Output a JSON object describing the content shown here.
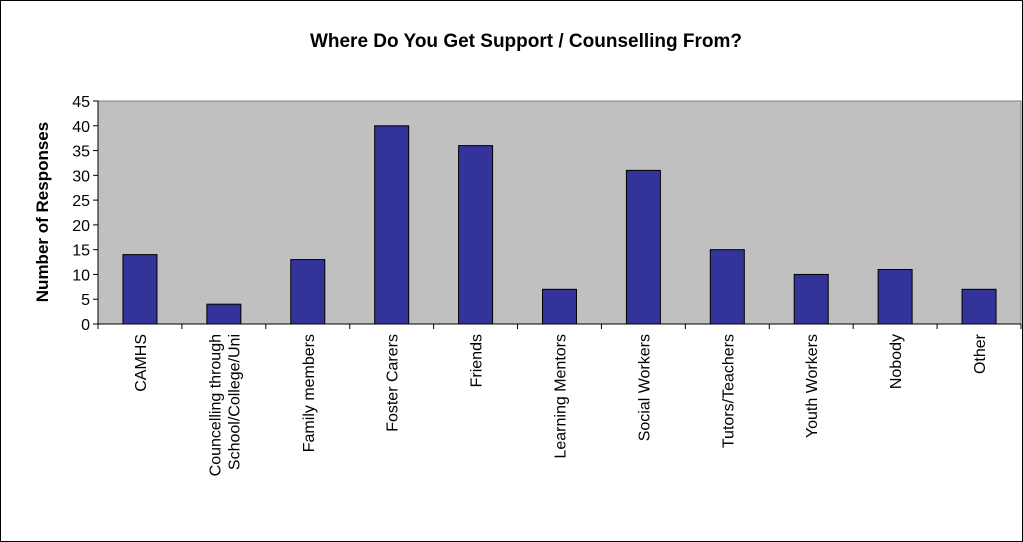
{
  "chart_data": {
    "type": "bar",
    "title": "Where Do You Get Support / Counselling From?",
    "ylabel": "Number of Responses",
    "xlabel": "",
    "ylim": [
      0,
      45
    ],
    "yticks": [
      0,
      5,
      10,
      15,
      20,
      25,
      30,
      35,
      40,
      45
    ],
    "grid": false,
    "legend": "none",
    "categories": [
      [
        "CAMHS"
      ],
      [
        "Councelling through",
        "School/College/Uni"
      ],
      [
        "Family members"
      ],
      [
        "Foster Carers"
      ],
      [
        "Friends"
      ],
      [
        "Learning Mentors"
      ],
      [
        "Social Workers"
      ],
      [
        "Tutors/Teachers"
      ],
      [
        "Youth Workers"
      ],
      [
        "Nobody"
      ],
      [
        "Other"
      ]
    ],
    "values": [
      14,
      4,
      13,
      40,
      36,
      7,
      31,
      15,
      10,
      11,
      7
    ],
    "colors": {
      "bar_fill": "#333399",
      "bar_stroke": "#000000",
      "plot_background": "#c0c0c0",
      "axis": "#000000"
    }
  }
}
